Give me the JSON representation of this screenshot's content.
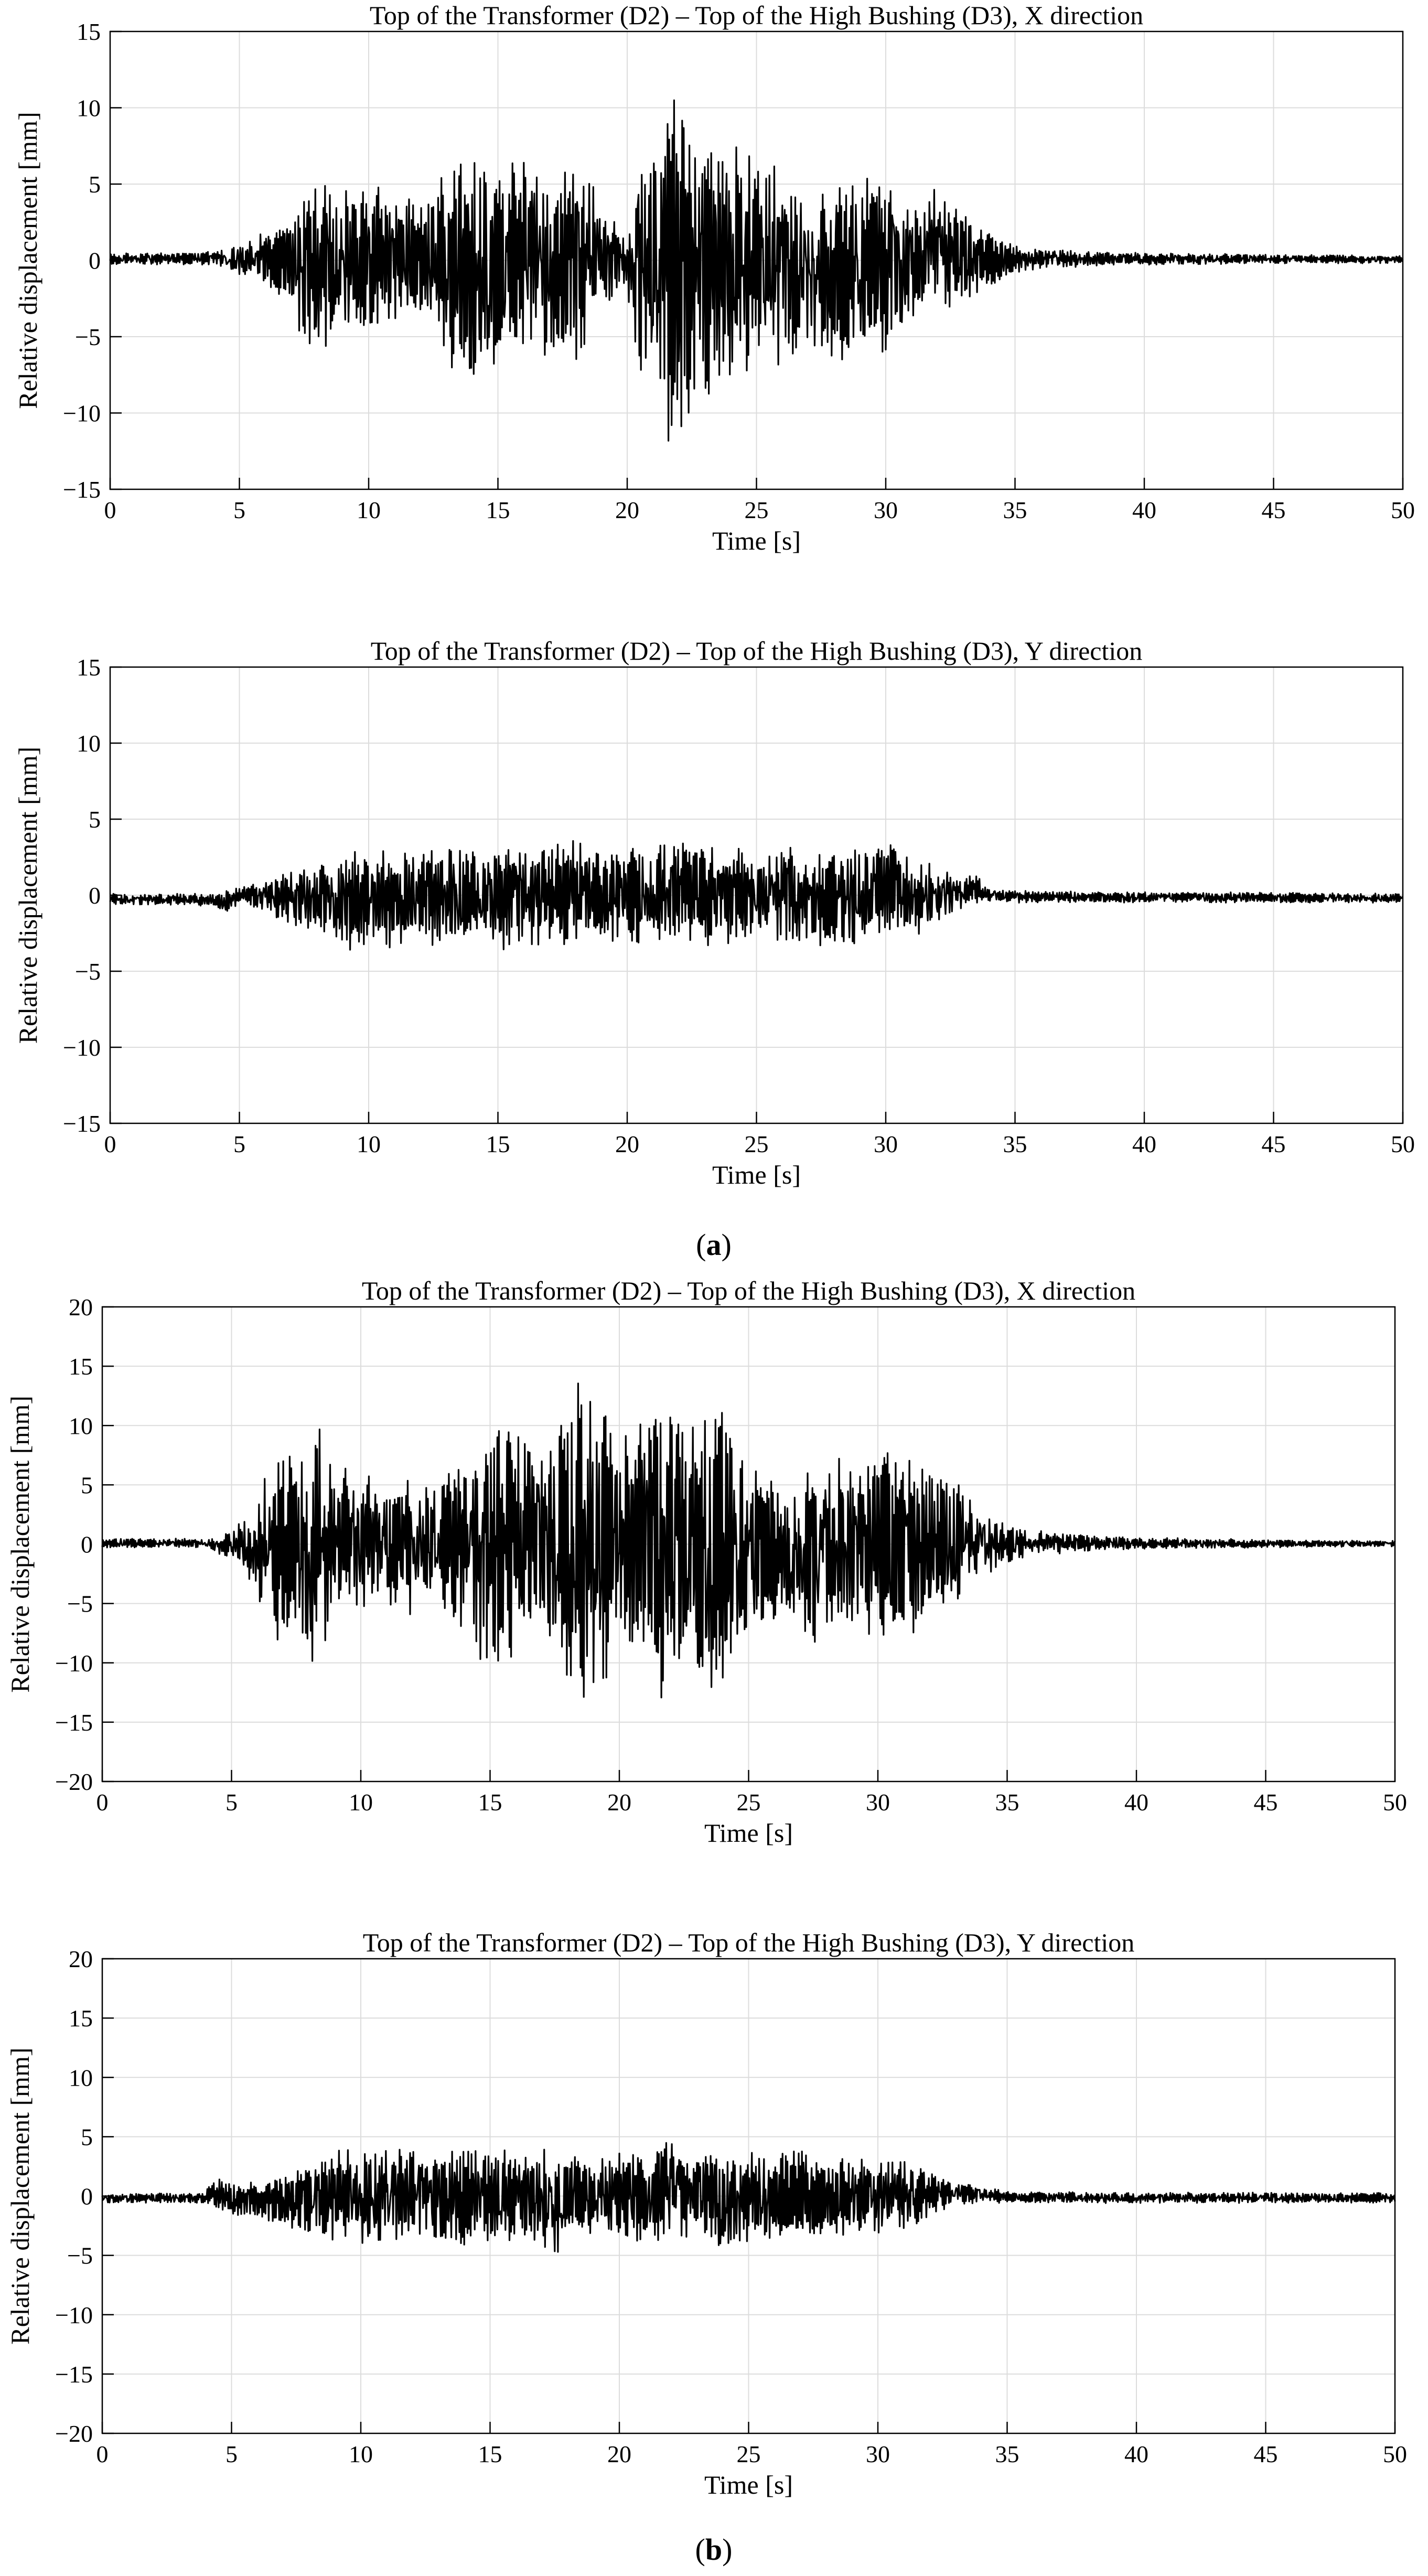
{
  "figure": {
    "panel_labels": [
      "(a)",
      "(b)"
    ],
    "panel_letters": [
      "a",
      "b"
    ]
  },
  "chart_data": [
    {
      "type": "line",
      "panel": "a",
      "title": "Top of the Transformer (D2) – Top of the High Bushing (D3), X direction",
      "xlabel": "Time [s]",
      "ylabel": "Relative displacement [mm]",
      "xlim": [
        0,
        50
      ],
      "ylim": [
        -15,
        15
      ],
      "xticks": [
        0,
        5,
        10,
        15,
        20,
        25,
        30,
        35,
        40,
        45,
        50
      ],
      "yticks": [
        -15,
        -10,
        -5,
        0,
        5,
        10,
        15
      ],
      "grid": true,
      "line_color": "#000000",
      "series": [
        {
          "x": [
            0,
            4,
            4.5,
            5,
            6,
            7,
            7.5,
            8,
            9,
            10,
            11,
            12,
            13,
            14,
            15,
            16,
            17,
            18,
            19,
            20,
            20.5,
            21,
            21.5,
            22,
            23,
            24,
            25,
            26,
            27,
            28,
            29,
            30,
            31,
            32,
            33,
            34,
            35,
            36,
            40,
            45,
            50
          ],
          "y": [
            0.4,
            0.5,
            0.8,
            -1.0,
            1.5,
            3.0,
            5.7,
            -6.0,
            -6.0,
            4.8,
            5.0,
            3.5,
            6.5,
            -8.5,
            6.8,
            -7.5,
            7.5,
            -7.0,
            3.0,
            -1.5,
            8.0,
            -10.0,
            11.3,
            -13.5,
            10.5,
            -8.5,
            6.8,
            -7.0,
            5.5,
            -7.0,
            5.5,
            -6.0,
            5.2,
            5.0,
            -3.0,
            2.5,
            1.0,
            0.5,
            0.3,
            0.2,
            0.2
          ],
          "envelope_pos": [
            0.5,
            0.6,
            0.9,
            1.0,
            2.0,
            3.0,
            5.0,
            5.8,
            4.8,
            5.0,
            4.6,
            4.0,
            6.5,
            6.9,
            6.2,
            7.0,
            5.5,
            7.0,
            4.0,
            2.0,
            8.0,
            10.0,
            11.3,
            10.8,
            10.2,
            8.2,
            7.0,
            6.0,
            5.8,
            5.5,
            5.8,
            5.6,
            4.5,
            5.0,
            3.0,
            2.0,
            1.0,
            0.7,
            0.5,
            0.4,
            0.3
          ],
          "envelope_neg": [
            0.3,
            0.3,
            0.6,
            1.0,
            1.6,
            3.0,
            5.8,
            6.2,
            5.8,
            4.8,
            4.2,
            4.0,
            6.8,
            8.4,
            7.0,
            6.0,
            6.5,
            7.5,
            3.5,
            2.0,
            8.5,
            10.0,
            13.5,
            12.0,
            9.8,
            8.5,
            6.8,
            7.0,
            6.2,
            7.0,
            6.0,
            6.0,
            4.5,
            3.5,
            2.6,
            1.8,
            0.9,
            0.5,
            0.3,
            0.2,
            0.2
          ]
        }
      ]
    },
    {
      "type": "line",
      "panel": "a",
      "title": "Top of the Transformer (D2) – Top of the High Bushing (D3), Y direction",
      "xlabel": "Time [s]",
      "ylabel": "Relative displacement [mm]",
      "xlim": [
        0,
        50
      ],
      "ylim": [
        -15,
        15
      ],
      "xticks": [
        0,
        5,
        10,
        15,
        20,
        25,
        30,
        35,
        40,
        45,
        50
      ],
      "yticks": [
        -15,
        -10,
        -5,
        0,
        5,
        10,
        15
      ],
      "grid": true,
      "line_color": "#000000",
      "series": [
        {
          "x": [
            0,
            4,
            4.5,
            5,
            6,
            7,
            8,
            9,
            10,
            11,
            12,
            13,
            14,
            15,
            16,
            17,
            18,
            19,
            20,
            21,
            22,
            23,
            24,
            25,
            26,
            27,
            28,
            29,
            30,
            31,
            32,
            33,
            33.5,
            34,
            35,
            40,
            45,
            50
          ],
          "y": [
            -0.3,
            -0.5,
            -1.2,
            0.2,
            0.5,
            1.5,
            2.5,
            -4.2,
            3.7,
            -3.5,
            3.0,
            -3.6,
            3.5,
            -3.8,
            4.2,
            -3.5,
            3.8,
            -3.0,
            3.2,
            -3.5,
            4.2,
            -3.8,
            3.6,
            -3.2,
            3.4,
            -3.5,
            3.5,
            -3.7,
            3.9,
            -3.0,
            2.5,
            1.0,
            1.3,
            0.2,
            0.0,
            -0.1,
            -0.2,
            -0.2
          ],
          "envelope_pos": [
            0.1,
            0.1,
            0.3,
            0.5,
            1.2,
            1.8,
            2.4,
            2.8,
            3.6,
            3.0,
            3.2,
            3.0,
            3.5,
            3.4,
            4.2,
            3.6,
            3.8,
            2.8,
            3.2,
            3.1,
            4.2,
            3.3,
            3.5,
            2.9,
            3.4,
            3.0,
            3.5,
            3.2,
            3.9,
            2.6,
            2.0,
            1.2,
            1.4,
            0.5,
            0.3,
            0.2,
            0.2,
            0.1
          ],
          "envelope_neg": [
            0.6,
            0.7,
            1.3,
            0.6,
            1.2,
            2.0,
            2.6,
            4.2,
            3.6,
            3.5,
            3.2,
            3.6,
            3.4,
            3.8,
            3.5,
            3.5,
            3.2,
            3.0,
            3.3,
            3.5,
            3.3,
            3.8,
            3.1,
            3.2,
            3.0,
            3.5,
            3.3,
            3.7,
            3.0,
            3.0,
            2.0,
            0.8,
            0.5,
            0.5,
            0.5,
            0.5,
            0.5,
            0.5
          ]
        }
      ]
    },
    {
      "type": "line",
      "panel": "b",
      "title": "Top of the Transformer (D2) – Top of the High Bushing (D3), X direction",
      "xlabel": "Time [s]",
      "ylabel": "Relative displacement [mm]",
      "xlim": [
        0,
        50
      ],
      "ylim": [
        -20,
        20
      ],
      "xticks": [
        0,
        5,
        10,
        15,
        20,
        25,
        30,
        35,
        40,
        45,
        50
      ],
      "yticks": [
        -20,
        -15,
        -10,
        -5,
        0,
        5,
        10,
        15,
        20
      ],
      "grid": true,
      "line_color": "#000000",
      "series": [
        {
          "x": [
            0,
            4,
            4.5,
            5,
            5.5,
            6,
            6.5,
            7,
            7.5,
            8,
            8.5,
            9,
            10,
            11,
            12,
            13,
            14,
            15,
            16,
            17,
            18,
            18.5,
            19,
            20,
            21,
            22,
            23,
            23.5,
            24,
            25,
            26,
            27,
            28,
            29,
            30,
            31,
            32,
            33,
            34,
            35,
            36,
            38,
            40,
            45,
            50
          ],
          "y": [
            0.4,
            0.4,
            -0.8,
            1.0,
            -2.5,
            4.0,
            8.0,
            -9.5,
            8.5,
            -12.5,
            10.5,
            -6.0,
            5.0,
            -5.5,
            5.8,
            -5.0,
            8.0,
            -12.5,
            11.0,
            -7.5,
            12.5,
            -16.5,
            14.5,
            -9.0,
            12.5,
            -14.0,
            11.0,
            -14.5,
            12.5,
            -8.5,
            5.5,
            -9.5,
            7.0,
            -7.5,
            9.5,
            -9.8,
            6.0,
            -5.5,
            3.0,
            1.5,
            1.0,
            0.6,
            0.5,
            0.4,
            0.3
          ],
          "envelope_pos": [
            0.5,
            0.5,
            0.6,
            1.2,
            2.5,
            4.5,
            8.0,
            7.5,
            8.5,
            8.5,
            10.5,
            7.0,
            6.0,
            5.8,
            6.2,
            5.5,
            8.5,
            11.0,
            11.0,
            7.5,
            12.5,
            14.5,
            14.3,
            9.0,
            12.5,
            12.5,
            11.5,
            12.7,
            12.0,
            7.0,
            6.0,
            6.5,
            7.5,
            7.0,
            9.5,
            8.0,
            6.5,
            5.5,
            3.5,
            1.8,
            1.2,
            0.8,
            0.6,
            0.4,
            0.3
          ],
          "envelope_neg": [
            0.3,
            0.3,
            0.8,
            1.5,
            2.8,
            5.0,
            8.5,
            9.5,
            9.0,
            12.5,
            9.5,
            6.0,
            5.5,
            5.8,
            6.0,
            5.0,
            8.0,
            12.5,
            10.0,
            8.0,
            13.0,
            16.5,
            14.0,
            9.5,
            12.0,
            14.0,
            10.5,
            14.5,
            12.0,
            8.5,
            6.5,
            9.5,
            7.5,
            7.5,
            9.8,
            9.8,
            6.5,
            5.5,
            3.2,
            1.6,
            1.0,
            0.6,
            0.4,
            0.3,
            0.2
          ]
        }
      ]
    },
    {
      "type": "line",
      "panel": "b",
      "title": "Top of the Transformer (D2) – Top of the High Bushing (D3), Y direction",
      "xlabel": "Time [s]",
      "ylabel": "Relative displacement [mm]",
      "xlim": [
        0,
        50
      ],
      "ylim": [
        -20,
        20
      ],
      "xticks": [
        0,
        5,
        10,
        15,
        20,
        25,
        30,
        35,
        40,
        45,
        50
      ],
      "yticks": [
        -20,
        -15,
        -10,
        -5,
        0,
        5,
        10,
        15,
        20
      ],
      "grid": true,
      "line_color": "#000000",
      "series": [
        {
          "x": [
            0,
            4,
            4.3,
            5,
            6,
            7,
            8,
            9,
            9.5,
            10,
            11,
            12,
            13,
            14,
            15,
            16,
            17,
            17.5,
            18,
            19,
            20,
            21,
            22,
            23,
            23.5,
            24,
            25,
            26,
            27,
            28,
            29,
            30,
            31,
            32,
            33,
            34,
            35,
            40,
            45,
            50
          ],
          "y": [
            -0.3,
            -0.3,
            1.8,
            -1.5,
            1.0,
            -2.8,
            3.5,
            -3.5,
            5.0,
            -4.5,
            4.2,
            -3.8,
            4.3,
            -4.8,
            4.0,
            -4.5,
            4.2,
            -6.0,
            3.5,
            -3.2,
            3.8,
            -4.2,
            5.2,
            -3.5,
            4.5,
            -5.5,
            4.0,
            -3.8,
            4.0,
            -3.5,
            3.5,
            -3.5,
            3.3,
            2.0,
            1.2,
            0.3,
            -0.2,
            -0.3,
            -0.3,
            -0.3
          ],
          "envelope_pos": [
            0.2,
            0.3,
            1.8,
            1.2,
            1.2,
            2.0,
            3.0,
            3.5,
            5.0,
            4.0,
            4.2,
            3.8,
            4.3,
            4.5,
            4.0,
            4.2,
            4.2,
            3.5,
            3.8,
            3.2,
            3.8,
            3.5,
            5.2,
            4.2,
            4.5,
            4.0,
            4.0,
            3.6,
            4.0,
            3.5,
            3.5,
            3.2,
            3.3,
            2.2,
            1.4,
            0.8,
            0.4,
            0.3,
            0.3,
            0.3
          ],
          "envelope_neg": [
            0.6,
            0.6,
            1.0,
            1.8,
            1.8,
            3.0,
            3.2,
            3.8,
            3.5,
            4.5,
            4.0,
            3.8,
            4.3,
            4.8,
            4.0,
            4.5,
            4.2,
            6.0,
            3.8,
            3.2,
            3.8,
            4.2,
            3.8,
            3.5,
            3.8,
            5.5,
            4.0,
            3.8,
            4.0,
            3.5,
            3.5,
            3.5,
            3.0,
            2.0,
            0.8,
            0.6,
            0.6,
            0.6,
            0.6,
            0.6
          ]
        }
      ]
    }
  ]
}
